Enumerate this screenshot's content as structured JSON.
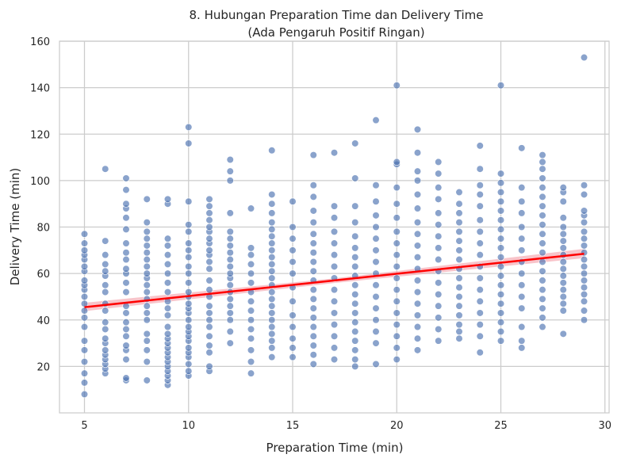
{
  "chart_data": {
    "type": "scatter",
    "title": "8. Hubungan Preparation Time dan Delivery Time",
    "subtitle": "(Ada Pengaruh Positif Ringan)",
    "xlabel": "Preparation Time (min)",
    "ylabel": "Delivery Time (min)",
    "xlim": [
      3.8,
      30.2
    ],
    "ylim": [
      0,
      160
    ],
    "xticks": [
      5,
      10,
      15,
      20,
      25,
      30
    ],
    "yticks": [
      20,
      40,
      60,
      80,
      100,
      120,
      140,
      160
    ],
    "grid": true,
    "point_color": "#4c72b0",
    "trend_color": "#ff0000",
    "band_color": "#f4a5ae",
    "trend_line": {
      "x": [
        5,
        29
      ],
      "y": [
        45.5,
        68.5
      ]
    },
    "confidence_band": {
      "x": [
        5,
        17,
        29
      ],
      "lower": [
        43.8,
        55.9,
        66.6
      ],
      "upper": [
        47.4,
        57.9,
        70.6
      ]
    },
    "points": [
      {
        "x": 5,
        "ys": [
          8,
          13,
          17,
          22,
          27,
          31,
          37,
          41,
          44,
          47,
          50,
          53,
          55,
          57,
          61,
          63,
          66,
          68,
          70,
          73,
          77
        ]
      },
      {
        "x": 6,
        "ys": [
          17,
          19,
          21,
          23,
          25,
          27,
          30,
          32,
          36,
          39,
          44,
          47,
          52,
          55,
          59,
          61,
          64,
          68,
          74,
          105
        ]
      },
      {
        "x": 7,
        "ys": [
          14,
          15,
          23,
          27,
          29,
          33,
          36,
          39,
          43,
          46,
          52,
          56,
          60,
          62,
          66,
          69,
          73,
          79,
          84,
          88,
          90,
          96,
          101
        ]
      },
      {
        "x": 8,
        "ys": [
          14,
          22,
          27,
          31,
          34,
          40,
          43,
          46,
          49,
          52,
          55,
          58,
          60,
          63,
          66,
          69,
          72,
          75,
          78,
          82,
          92
        ]
      },
      {
        "x": 9,
        "ys": [
          12,
          14,
          16,
          18,
          20,
          22,
          24,
          26,
          28,
          30,
          32,
          34,
          37,
          42,
          45,
          48,
          52,
          56,
          60,
          64,
          68,
          72,
          75,
          90,
          92
        ]
      },
      {
        "x": 10,
        "ys": [
          16,
          18,
          21,
          24,
          26,
          28,
          31,
          33,
          35,
          37,
          40,
          43,
          45,
          47,
          50,
          52,
          56,
          60,
          63,
          67,
          70,
          73,
          78,
          81,
          91,
          116,
          123
        ]
      },
      {
        "x": 11,
        "ys": [
          18,
          20,
          26,
          29,
          33,
          37,
          40,
          43,
          46,
          50,
          53,
          57,
          62,
          65,
          68,
          70,
          73,
          75,
          78,
          80,
          83,
          86,
          89,
          92
        ]
      },
      {
        "x": 12,
        "ys": [
          30,
          35,
          40,
          43,
          46,
          49,
          52,
          55,
          58,
          60,
          63,
          66,
          69,
          72,
          75,
          78,
          86,
          100,
          104,
          109
        ]
      },
      {
        "x": 13,
        "ys": [
          17,
          22,
          27,
          32,
          36,
          40,
          44,
          48,
          52,
          56,
          60,
          64,
          68,
          71,
          88
        ]
      },
      {
        "x": 14,
        "ys": [
          24,
          28,
          31,
          34,
          37,
          40,
          43,
          46,
          49,
          52,
          55,
          58,
          61,
          64,
          67,
          70,
          73,
          76,
          79,
          82,
          86,
          90,
          94,
          113
        ]
      },
      {
        "x": 15,
        "ys": [
          24,
          28,
          32,
          37,
          42,
          48,
          54,
          60,
          65,
          70,
          75,
          80,
          91
        ]
      },
      {
        "x": 16,
        "ys": [
          21,
          25,
          29,
          33,
          37,
          41,
          45,
          49,
          53,
          57,
          61,
          65,
          69,
          73,
          77,
          82,
          87,
          93,
          98,
          111
        ]
      },
      {
        "x": 17,
        "ys": [
          23,
          28,
          33,
          38,
          43,
          48,
          53,
          58,
          63,
          68,
          73,
          78,
          84,
          89,
          112
        ]
      },
      {
        "x": 18,
        "ys": [
          20,
          23,
          27,
          31,
          35,
          39,
          43,
          47,
          51,
          55,
          59,
          63,
          67,
          71,
          76,
          82,
          89,
          101,
          116
        ]
      },
      {
        "x": 19,
        "ys": [
          21,
          30,
          35,
          40,
          45,
          50,
          55,
          60,
          65,
          70,
          75,
          80,
          85,
          91,
          98,
          126
        ]
      },
      {
        "x": 20,
        "ys": [
          23,
          28,
          33,
          38,
          43,
          48,
          53,
          58,
          63,
          68,
          73,
          78,
          84,
          90,
          97,
          107,
          108,
          141
        ]
      },
      {
        "x": 21,
        "ys": [
          27,
          32,
          37,
          42,
          47,
          52,
          57,
          62,
          67,
          72,
          77,
          82,
          88,
          94,
          100,
          104,
          112,
          122
        ]
      },
      {
        "x": 22,
        "ys": [
          31,
          36,
          41,
          46,
          51,
          56,
          61,
          66,
          71,
          76,
          81,
          86,
          92,
          97,
          103,
          108
        ]
      },
      {
        "x": 23,
        "ys": [
          32,
          35,
          38,
          42,
          46,
          50,
          54,
          58,
          62,
          66,
          70,
          74,
          78,
          82,
          86,
          90,
          95
        ]
      },
      {
        "x": 24,
        "ys": [
          26,
          33,
          38,
          43,
          48,
          53,
          58,
          63,
          68,
          73,
          78,
          83,
          89,
          94,
          98,
          105,
          115
        ]
      },
      {
        "x": 25,
        "ys": [
          31,
          35,
          39,
          43,
          47,
          51,
          55,
          59,
          63,
          67,
          71,
          75,
          79,
          83,
          87,
          91,
          95,
          99,
          103,
          141
        ]
      },
      {
        "x": 26,
        "ys": [
          28,
          31,
          37,
          45,
          50,
          55,
          60,
          65,
          70,
          75,
          80,
          86,
          91,
          97,
          114
        ]
      },
      {
        "x": 27,
        "ys": [
          37,
          41,
          45,
          49,
          53,
          57,
          61,
          65,
          69,
          73,
          77,
          81,
          85,
          89,
          93,
          97,
          101,
          105,
          108,
          111
        ]
      },
      {
        "x": 28,
        "ys": [
          34,
          44,
          47,
          50,
          53,
          56,
          59,
          62,
          65,
          68,
          71,
          74,
          77,
          80,
          84,
          91,
          95,
          97
        ]
      },
      {
        "x": 29,
        "ys": [
          40,
          44,
          48,
          51,
          54,
          57,
          60,
          63,
          66,
          69,
          72,
          75,
          78,
          82,
          85,
          87,
          94,
          98,
          153
        ]
      }
    ]
  }
}
